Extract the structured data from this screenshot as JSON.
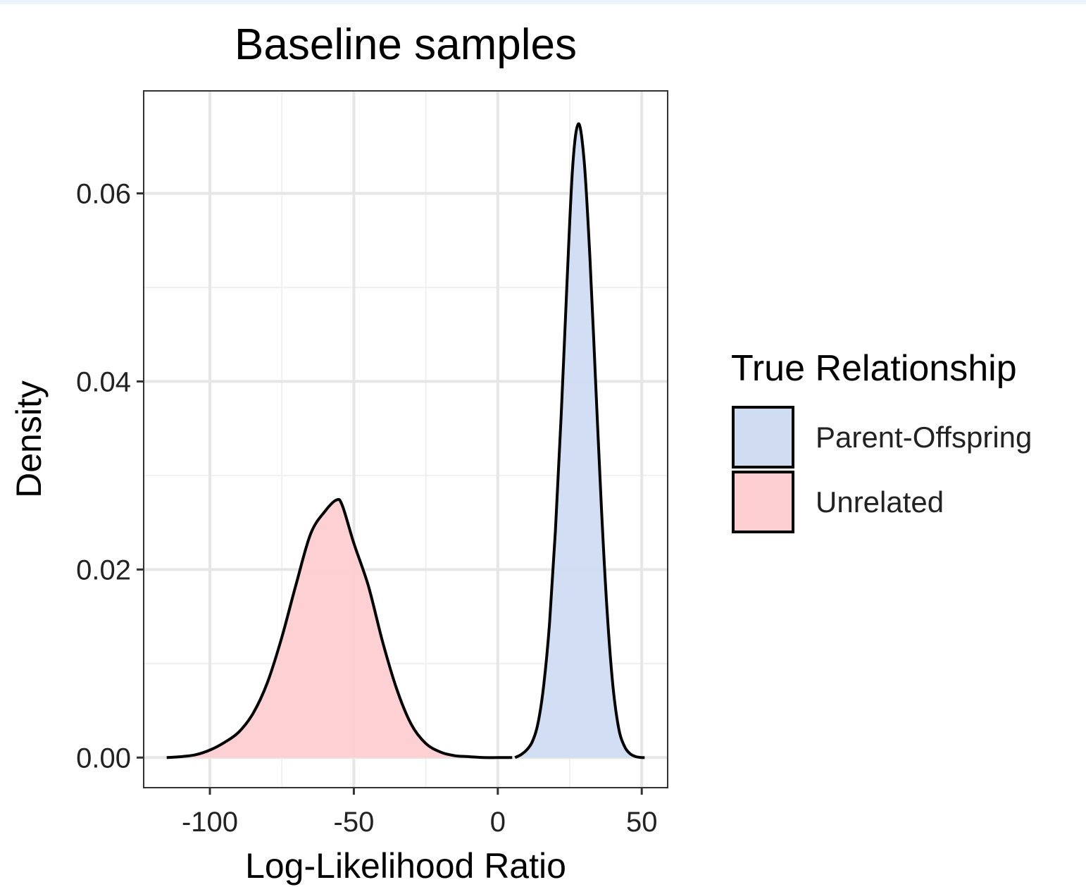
{
  "chart_data": {
    "type": "area",
    "title": "Baseline samples",
    "xlabel": "Log-Likelihood Ratio",
    "ylabel": "Density",
    "xlim": [
      -123,
      59
    ],
    "ylim": [
      -0.0032,
      0.0709
    ],
    "xticks": [
      -100,
      -50,
      0,
      50
    ],
    "xtick_labels": [
      "-100",
      "-50",
      "0",
      "50"
    ],
    "yticks": [
      0.0,
      0.02,
      0.04,
      0.06
    ],
    "ytick_labels": [
      "0.00",
      "0.02",
      "0.04",
      "0.06"
    ],
    "x_minor": [
      -75,
      -25,
      25
    ],
    "y_minor": [
      0.01,
      0.03,
      0.05
    ],
    "grid": true,
    "legend": {
      "title": "True Relationship",
      "position": "right"
    },
    "series": [
      {
        "name": "Parent-Offspring",
        "color": "#cfdcf2",
        "x": [
          6,
          8,
          10,
          12,
          14,
          16,
          18,
          20,
          22,
          24,
          26,
          28,
          30,
          32,
          34,
          36,
          38,
          40,
          42,
          44,
          46,
          48,
          50,
          51
        ],
        "y": [
          0.0,
          0.0003,
          0.0008,
          0.0017,
          0.0037,
          0.0078,
          0.0144,
          0.0241,
          0.0362,
          0.0502,
          0.0628,
          0.0674,
          0.0634,
          0.0532,
          0.0398,
          0.0265,
          0.0154,
          0.0076,
          0.0031,
          0.0012,
          0.0004,
          0.0001,
          0.0,
          0.0
        ]
      },
      {
        "name": "Unrelated",
        "color": "#fdcfd2",
        "x": [
          -115,
          -110,
          -105,
          -100,
          -95,
          -90,
          -85,
          -80,
          -75,
          -70,
          -65,
          -60,
          -56,
          -54,
          -50,
          -45,
          -40,
          -35,
          -30,
          -25,
          -20,
          -15,
          -10,
          -5,
          0,
          5
        ],
        "y": [
          0.0,
          0.0001,
          0.0003,
          0.0008,
          0.0016,
          0.0027,
          0.0047,
          0.008,
          0.0128,
          0.0185,
          0.0238,
          0.0262,
          0.0274,
          0.0268,
          0.0228,
          0.0183,
          0.0123,
          0.0072,
          0.0035,
          0.0015,
          0.0006,
          0.0002,
          0.0001,
          0.0,
          0.0,
          0.0
        ]
      }
    ]
  }
}
